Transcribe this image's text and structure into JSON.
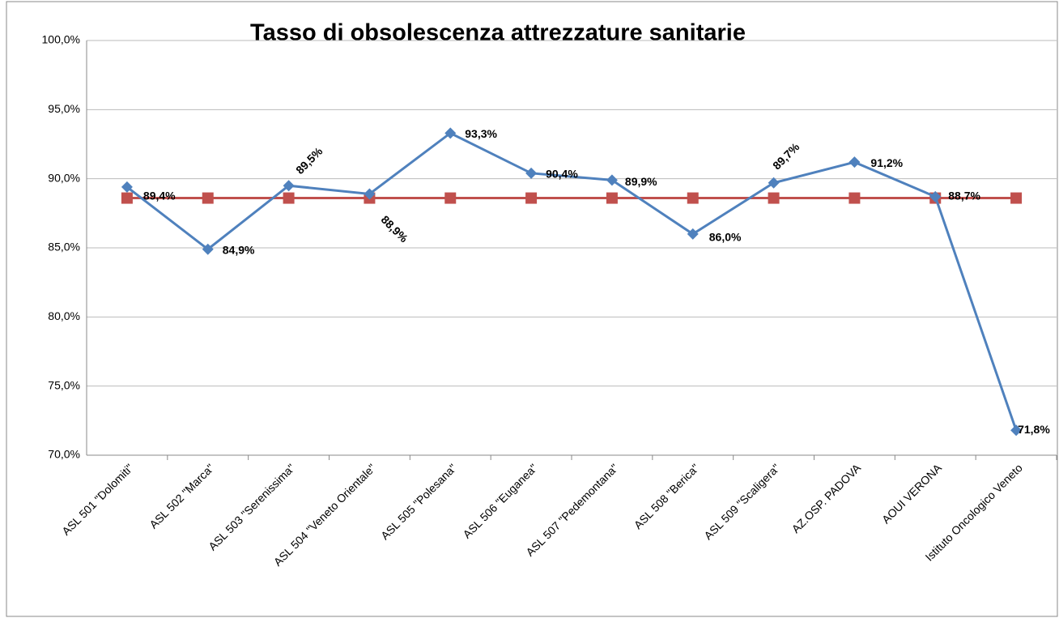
{
  "chart_data": {
    "type": "line",
    "title": "Tasso di obsolescenza attrezzature sanitarie",
    "categories": [
      "ASL 501 \"Dolomiti\"",
      "ASL 502 \"Marca\"",
      "ASL 503 \"Serenissima\"",
      "ASL 504 \"Veneto Orientale\"",
      "ASL 505 \"Polesana\"",
      "ASL 506 \"Euganea\"",
      "ASL 507 \"Pedemontana\"",
      "ASL 508 \"Berica\"",
      "ASL 509 \"Scaligera\"",
      "AZ.OSP. PADOVA",
      "AOUI VERONA",
      "Istituto Oncologico Veneto"
    ],
    "series": [
      {
        "color": "#4f81bd",
        "marker": "diamond",
        "values": [
          89.4,
          84.9,
          89.5,
          88.9,
          93.3,
          90.4,
          89.9,
          86.0,
          89.7,
          91.2,
          88.7,
          71.8
        ],
        "value_labels": [
          "89,4%",
          "84,9%",
          "89,5%",
          "88,9%",
          "93,3%",
          "90,4%",
          "89,9%",
          "86,0%",
          "89,7%",
          "91,2%",
          "88,7%",
          "71,8%"
        ]
      },
      {
        "color": "#c0504d",
        "marker": "square",
        "values": [
          88.6,
          88.6,
          88.6,
          88.6,
          88.6,
          88.6,
          88.6,
          88.6,
          88.6,
          88.6,
          88.6,
          88.6
        ]
      }
    ],
    "ylim": [
      70,
      100
    ],
    "yticks": [
      {
        "value": 70,
        "label": "70,0%"
      },
      {
        "value": 75,
        "label": "75,0%"
      },
      {
        "value": 80,
        "label": "80,0%"
      },
      {
        "value": 85,
        "label": "85,0%"
      },
      {
        "value": 90,
        "label": "90,0%"
      },
      {
        "value": 95,
        "label": "95,0%"
      },
      {
        "value": 100,
        "label": "100,0%"
      }
    ],
    "grid": true
  }
}
